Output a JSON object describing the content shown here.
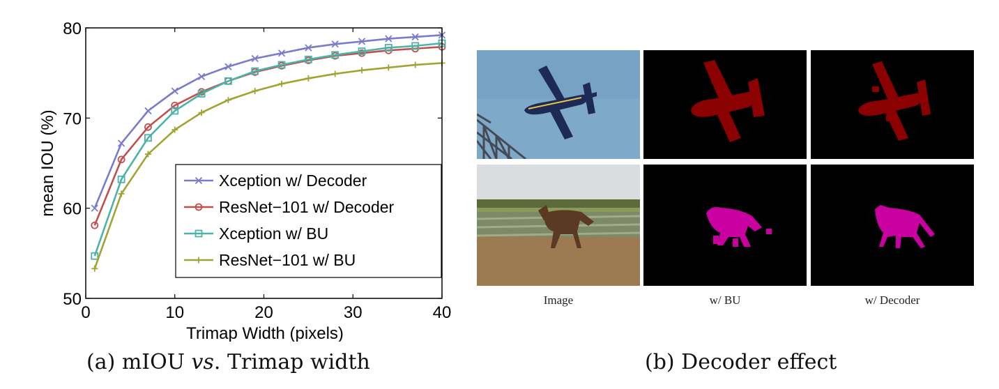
{
  "chart_data": {
    "type": "line",
    "xlabel": "Trimap Width (pixels)",
    "ylabel": "mean IOU (%)",
    "xlim": [
      0,
      40
    ],
    "ylim": [
      50,
      80
    ],
    "xticks": [
      "0",
      "10",
      "20",
      "30",
      "40"
    ],
    "yticks": [
      "50",
      "60",
      "70",
      "80"
    ],
    "grid": false,
    "legend_position": "lower-right",
    "x": [
      1,
      4,
      7,
      10,
      13,
      16,
      19,
      22,
      25,
      28,
      31,
      34,
      37,
      40
    ],
    "series": [
      {
        "name": "Xception w/ Decoder",
        "color": "#7b7bcc",
        "marker": "x",
        "values": [
          60.0,
          67.2,
          70.8,
          73.0,
          74.6,
          75.7,
          76.6,
          77.2,
          77.8,
          78.2,
          78.5,
          78.8,
          79.0,
          79.2
        ]
      },
      {
        "name": "ResNet−101 w/ Decoder",
        "color": "#c0504d",
        "marker": "o",
        "values": [
          58.1,
          65.4,
          69.0,
          71.4,
          72.9,
          74.1,
          75.1,
          75.8,
          76.4,
          76.9,
          77.2,
          77.5,
          77.7,
          77.9
        ]
      },
      {
        "name": "Xception w/ BU",
        "color": "#4bb3a8",
        "marker": "s",
        "values": [
          54.7,
          63.2,
          67.8,
          70.8,
          72.7,
          74.1,
          75.2,
          75.9,
          76.5,
          77.0,
          77.4,
          77.8,
          78.0,
          78.3
        ]
      },
      {
        "name": "ResNet−101 w/ BU",
        "color": "#a3a333",
        "marker": "+",
        "values": [
          53.3,
          61.6,
          66.0,
          68.7,
          70.6,
          72.0,
          73.0,
          73.8,
          74.4,
          74.9,
          75.3,
          75.6,
          75.9,
          76.1
        ]
      }
    ]
  },
  "captions": {
    "a_prefix": "(a) mIOU ",
    "a_vs": "vs",
    "a_suffix": ". Trimap width",
    "b": "(b) Decoder effect"
  },
  "panels": {
    "col_labels": [
      "Image",
      "w/ BU",
      "w/ Decoder"
    ]
  },
  "colors": {
    "airplane_mask": "#8b0000",
    "horse_mask": "#c800a0",
    "sky": "#7fa9c8",
    "mask_background": "#000000"
  }
}
